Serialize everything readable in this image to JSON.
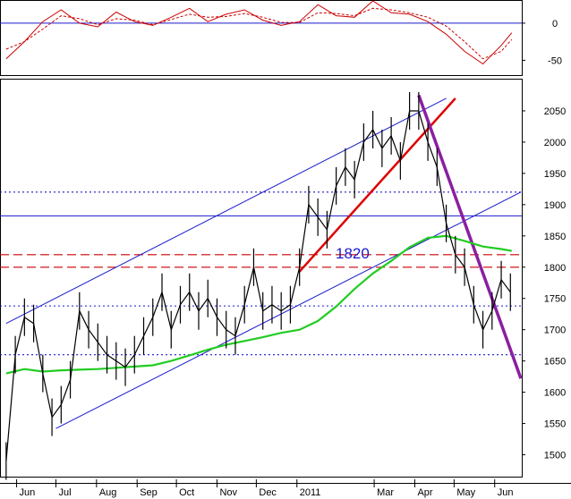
{
  "chart_data": [
    {
      "type": "line",
      "panel": "oscillator",
      "y_ticks": [
        "0",
        "-50"
      ],
      "ylim": [
        -70,
        30
      ],
      "reference_lines": [
        {
          "value": 0,
          "color": "#1a1acc"
        }
      ],
      "series": [
        {
          "style": "solid",
          "color": "#cc0000",
          "x": [
            "2010-05-24",
            "2010-06-07",
            "2010-06-21",
            "2010-07-05",
            "2010-07-19",
            "2010-08-02",
            "2010-08-16",
            "2010-08-30",
            "2010-09-13",
            "2010-09-27",
            "2010-10-11",
            "2010-10-25",
            "2010-11-08",
            "2010-11-22",
            "2010-12-06",
            "2010-12-20",
            "2011-01-03",
            "2011-01-17",
            "2011-01-31",
            "2011-02-14",
            "2011-02-28",
            "2011-03-14",
            "2011-03-28",
            "2011-04-11",
            "2011-04-25",
            "2011-05-09",
            "2011-05-23",
            "2011-06-06",
            "2011-06-14"
          ],
          "y": [
            -48,
            -25,
            2,
            18,
            0,
            -5,
            15,
            2,
            -3,
            8,
            20,
            2,
            12,
            18,
            4,
            -3,
            2,
            25,
            10,
            8,
            30,
            14,
            12,
            2,
            -15,
            -38,
            -55,
            -30,
            -13
          ]
        },
        {
          "style": "dashed",
          "color": "#cc0000",
          "x": [
            "2010-05-24",
            "2010-06-07",
            "2010-06-21",
            "2010-07-05",
            "2010-07-19",
            "2010-08-02",
            "2010-08-16",
            "2010-08-30",
            "2010-09-13",
            "2010-09-27",
            "2010-10-11",
            "2010-10-25",
            "2010-11-08",
            "2010-11-22",
            "2010-12-06",
            "2010-12-20",
            "2011-01-03",
            "2011-01-17",
            "2011-01-31",
            "2011-02-14",
            "2011-02-28",
            "2011-03-14",
            "2011-03-28",
            "2011-04-11",
            "2011-04-25",
            "2011-05-09",
            "2011-05-23",
            "2011-06-06",
            "2011-06-14"
          ],
          "y": [
            -35,
            -25,
            -8,
            10,
            6,
            -2,
            6,
            4,
            -2,
            5,
            12,
            8,
            9,
            13,
            8,
            1,
            1,
            14,
            13,
            10,
            20,
            18,
            14,
            8,
            -4,
            -25,
            -48,
            -38,
            -22
          ]
        }
      ]
    },
    {
      "type": "candlestick",
      "panel": "price",
      "x_tick_labels": [
        "Jun",
        "Jul",
        "Aug",
        "Sep",
        "Oct",
        "Nov",
        "Dec",
        "2011",
        "Mar",
        "Apr",
        "May",
        "Jun"
      ],
      "y_ticks": [
        "2050",
        "2000",
        "1950",
        "1900",
        "1850",
        "1800",
        "1750",
        "1700",
        "1650",
        "1600",
        "1550",
        "1500"
      ],
      "ylim": [
        1465,
        2100
      ],
      "annotations": [
        {
          "text": "1820",
          "color": "#1a1acc"
        }
      ],
      "horizontal_levels": [
        {
          "value": 1920,
          "color": "#1a1acc",
          "style": "dotted"
        },
        {
          "value": 1882,
          "color": "#1a1acc",
          "style": "solid"
        },
        {
          "value": 1820,
          "color": "#cc0000",
          "style": "dashed"
        },
        {
          "value": 1800,
          "color": "#cc0000",
          "style": "dashed"
        },
        {
          "value": 1738,
          "color": "#1a1acc",
          "style": "dotted"
        },
        {
          "value": 1660,
          "color": "#1a1acc",
          "style": "dotted"
        }
      ],
      "trend_lines": [
        {
          "color": "#1a1acc",
          "from": [
            "2010-05-24",
            1710
          ],
          "to": [
            "2011-04-25",
            2070
          ]
        },
        {
          "color": "#1a1acc",
          "from": [
            "2010-07-01",
            1542
          ],
          "to": [
            "2011-06-21",
            1920
          ]
        },
        {
          "color": "#dd0000",
          "from": [
            "2011-01-03",
            1793
          ],
          "to": [
            "2011-05-02",
            2070
          ]
        },
        {
          "color": "#8a1fa0",
          "from": [
            "2011-04-04",
            2075
          ],
          "to": [
            "2011-06-21",
            1622
          ]
        }
      ],
      "series": [
        {
          "style": "moving-average",
          "color": "#22cc22",
          "x": [
            "2010-05-24",
            "2010-06-07",
            "2010-06-21",
            "2010-07-05",
            "2010-07-19",
            "2010-08-02",
            "2010-08-16",
            "2010-08-30",
            "2010-09-13",
            "2010-09-27",
            "2010-10-11",
            "2010-10-25",
            "2010-11-08",
            "2010-11-22",
            "2010-12-06",
            "2010-12-20",
            "2011-01-03",
            "2011-01-17",
            "2011-01-31",
            "2011-02-14",
            "2011-02-28",
            "2011-03-14",
            "2011-03-28",
            "2011-04-11",
            "2011-04-25",
            "2011-05-09",
            "2011-05-23",
            "2011-06-06",
            "2011-06-14"
          ],
          "y": [
            1630,
            1637,
            1633,
            1635,
            1636,
            1637,
            1639,
            1641,
            1643,
            1650,
            1659,
            1668,
            1676,
            1682,
            1688,
            1695,
            1700,
            1714,
            1737,
            1765,
            1790,
            1810,
            1832,
            1847,
            1850,
            1842,
            1833,
            1829,
            1826
          ]
        },
        {
          "style": "price",
          "x": [
            "2010-05-24",
            "2010-05-31",
            "2010-06-07",
            "2010-06-14",
            "2010-06-21",
            "2010-06-28",
            "2010-07-05",
            "2010-07-12",
            "2010-07-19",
            "2010-07-26",
            "2010-08-02",
            "2010-08-09",
            "2010-08-16",
            "2010-08-23",
            "2010-08-30",
            "2010-09-06",
            "2010-09-13",
            "2010-09-20",
            "2010-09-27",
            "2010-10-04",
            "2010-10-11",
            "2010-10-18",
            "2010-10-25",
            "2010-11-01",
            "2010-11-08",
            "2010-11-15",
            "2010-11-22",
            "2010-11-29",
            "2010-12-06",
            "2010-12-13",
            "2010-12-20",
            "2010-12-27",
            "2011-01-03",
            "2011-01-10",
            "2011-01-17",
            "2011-01-24",
            "2011-01-31",
            "2011-02-07",
            "2011-02-14",
            "2011-02-21",
            "2011-02-28",
            "2011-03-07",
            "2011-03-14",
            "2011-03-21",
            "2011-03-28",
            "2011-04-04",
            "2011-04-11",
            "2011-04-18",
            "2011-04-25",
            "2011-05-02",
            "2011-05-09",
            "2011-05-16",
            "2011-05-23",
            "2011-05-30",
            "2011-06-06",
            "2011-06-13"
          ],
          "y": [
            1490,
            1660,
            1720,
            1710,
            1630,
            1560,
            1580,
            1620,
            1730,
            1700,
            1680,
            1660,
            1650,
            1640,
            1660,
            1690,
            1720,
            1760,
            1700,
            1740,
            1760,
            1730,
            1750,
            1720,
            1700,
            1690,
            1740,
            1800,
            1730,
            1740,
            1730,
            1740,
            1800,
            1900,
            1880,
            1860,
            1930,
            1960,
            1940,
            2000,
            2020,
            1990,
            2010,
            1970,
            2050,
            2050,
            2000,
            1960,
            1870,
            1820,
            1800,
            1740,
            1700,
            1730,
            1780,
            1760
          ]
        }
      ]
    }
  ]
}
